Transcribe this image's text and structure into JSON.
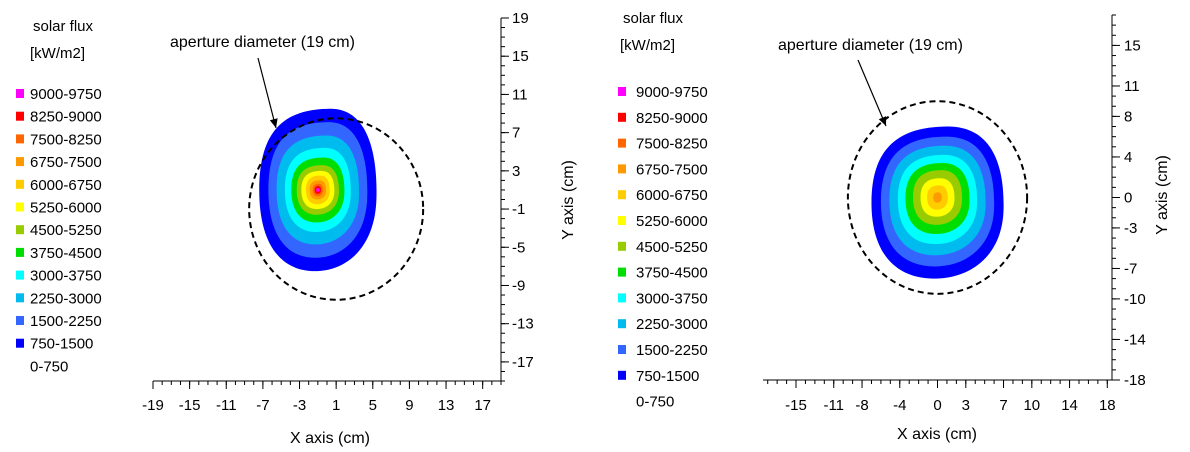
{
  "colors": {
    "bands": [
      "#ffffff",
      "#0000ff",
      "#3366ff",
      "#00bbee",
      "#00ffff",
      "#00dd00",
      "#99cc00",
      "#ffff00",
      "#ffcc00",
      "#ff9900",
      "#ff6600",
      "#ff0000",
      "#ff00ff"
    ]
  },
  "chart_data": [
    {
      "type": "heatmap",
      "title": "",
      "annotation": "aperture diameter (19 cm)",
      "legend_title_line1": "solar flux",
      "legend_title_line2": "[kW/m2]",
      "legend_entries": [
        "9000-9750",
        "8250-9000",
        "7500-8250",
        "6750-7500",
        "6000-6750",
        "5250-6000",
        "4500-5250",
        "3750-4500",
        "3000-3750",
        "2250-3000",
        "1500-2250",
        "750-1500",
        "0-750"
      ],
      "legend_colors": [
        "#ff00ff",
        "#ff0000",
        "#ff6600",
        "#ff9900",
        "#ffcc00",
        "#ffff00",
        "#99cc00",
        "#00dd00",
        "#00ffff",
        "#00bbee",
        "#3366ff",
        "#0000ff",
        "#ffffff"
      ],
      "legend_placement": "left",
      "xlabel": "X axis (cm)",
      "ylabel": "Y axis (cm)",
      "xlim": [
        -19,
        19
      ],
      "ylim": [
        -19,
        19
      ],
      "x_ticks": [
        "-19",
        "-15",
        "-11",
        "-7",
        "-3",
        "1",
        "5",
        "9",
        "13",
        "17"
      ],
      "y_ticks": [
        "19",
        "15",
        "11",
        "7",
        "3",
        "-1",
        "-5",
        "-9",
        "-13",
        "-17"
      ],
      "aperture": {
        "center": [
          1,
          -1
        ],
        "diameter": 19
      },
      "peak": {
        "x": -1,
        "y": 1,
        "max_band": "9000-9750"
      },
      "contours": [
        {
          "band": "750-1500",
          "center": [
            -1,
            1
          ],
          "rx": 6.4,
          "ry": 8.5
        },
        {
          "band": "1500-2250",
          "center": [
            -1,
            1
          ],
          "rx": 5.4,
          "ry": 7.1
        },
        {
          "band": "2250-3000",
          "center": [
            -1,
            1
          ],
          "rx": 4.5,
          "ry": 5.7
        },
        {
          "band": "3000-3750",
          "center": [
            -1,
            1
          ],
          "rx": 3.6,
          "ry": 4.4
        },
        {
          "band": "3750-4500",
          "center": [
            -1,
            1
          ],
          "rx": 2.9,
          "ry": 3.4
        },
        {
          "band": "4500-5250",
          "center": [
            -1,
            1
          ],
          "rx": 2.3,
          "ry": 2.6
        },
        {
          "band": "5250-6000",
          "center": [
            -1,
            1
          ],
          "rx": 1.8,
          "ry": 2.0
        },
        {
          "band": "6000-6750",
          "center": [
            -1,
            1
          ],
          "rx": 1.3,
          "ry": 1.5
        },
        {
          "band": "6750-7500",
          "center": [
            -1,
            1
          ],
          "rx": 0.9,
          "ry": 1.0
        },
        {
          "band": "7500-8250",
          "center": [
            -1,
            1
          ],
          "rx": 0.55,
          "ry": 0.65
        },
        {
          "band": "8250-9000",
          "center": [
            -1,
            1
          ],
          "rx": 0.35,
          "ry": 0.4
        },
        {
          "band": "9000-9750",
          "center": [
            -1,
            1
          ],
          "rx": 0.18,
          "ry": 0.2
        }
      ]
    },
    {
      "type": "heatmap",
      "title": "",
      "annotation": "aperture diameter (19 cm)",
      "legend_title_line1": "solar flux",
      "legend_title_line2": "[kW/m2]",
      "legend_entries": [
        "9000-9750",
        "8250-9000",
        "7500-8250",
        "6750-7500",
        "6000-6750",
        "5250-6000",
        "4500-5250",
        "3750-4500",
        "3000-3750",
        "2250-3000",
        "1500-2250",
        "750-1500",
        "0-750"
      ],
      "legend_colors": [
        "#ff00ff",
        "#ff0000",
        "#ff6600",
        "#ff9900",
        "#ffcc00",
        "#ffff00",
        "#99cc00",
        "#00dd00",
        "#00ffff",
        "#00bbee",
        "#3366ff",
        "#0000ff",
        "#ffffff"
      ],
      "legend_placement": "left",
      "xlabel": "X axis (cm)",
      "ylabel": "Y axis (cm)",
      "xlim": [
        -19,
        18
      ],
      "ylim": [
        -18,
        18
      ],
      "x_ticks": [
        "-15",
        "-11",
        "-8",
        "-4",
        "0",
        "3",
        "7",
        "10",
        "14",
        "18"
      ],
      "x_tick_values": [
        -15,
        -11,
        -8,
        -4,
        0,
        3,
        7,
        10,
        14,
        18
      ],
      "y_ticks": [
        "15",
        "11",
        "8",
        "4",
        "0",
        "-3",
        "-7",
        "-10",
        "-14",
        "-18"
      ],
      "y_tick_values": [
        15,
        11,
        8,
        4,
        0,
        -3,
        -7,
        -10,
        -14,
        -18
      ],
      "aperture": {
        "center": [
          0,
          0
        ],
        "diameter": 19
      },
      "peak": {
        "x": 0,
        "y": 0,
        "max_band": "6750-7500"
      },
      "contours": [
        {
          "band": "750-1500",
          "center": [
            0,
            -0.5
          ],
          "rx": 7.0,
          "ry": 7.5
        },
        {
          "band": "1500-2250",
          "center": [
            0,
            -0.4
          ],
          "rx": 6.0,
          "ry": 6.4
        },
        {
          "band": "2250-3000",
          "center": [
            0,
            -0.3
          ],
          "rx": 5.1,
          "ry": 5.4
        },
        {
          "band": "3000-3750",
          "center": [
            0,
            -0.2
          ],
          "rx": 4.2,
          "ry": 4.4
        },
        {
          "band": "3750-4500",
          "center": [
            0,
            -0.1
          ],
          "rx": 3.4,
          "ry": 3.5
        },
        {
          "band": "4500-5250",
          "center": [
            0,
            0
          ],
          "rx": 2.6,
          "ry": 2.7
        },
        {
          "band": "5250-6000",
          "center": [
            0,
            0
          ],
          "rx": 1.8,
          "ry": 1.9
        },
        {
          "band": "6000-6750",
          "center": [
            0,
            0
          ],
          "rx": 1.1,
          "ry": 1.2
        },
        {
          "band": "6750-7500",
          "center": [
            0,
            0
          ],
          "rx": 0.45,
          "ry": 0.5
        }
      ]
    }
  ]
}
